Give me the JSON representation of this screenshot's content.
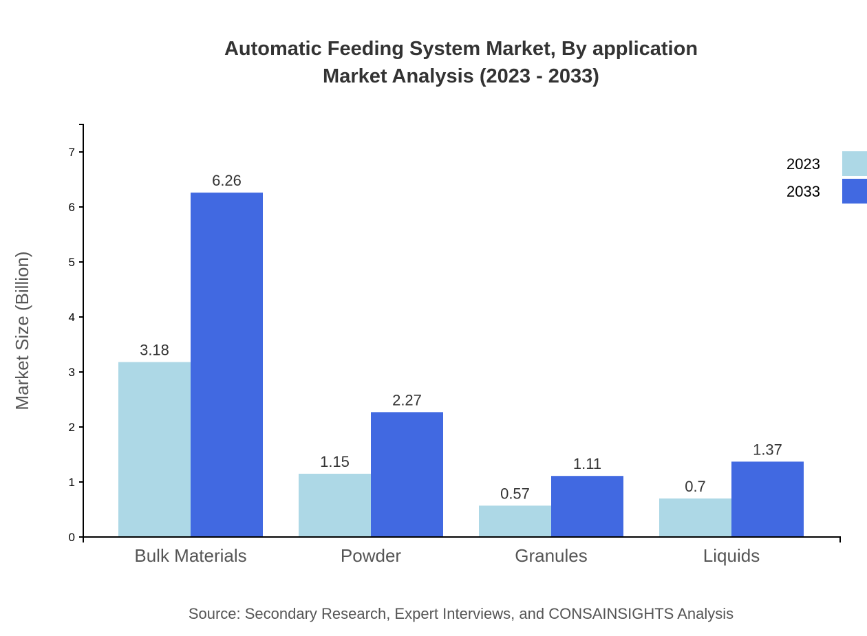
{
  "chart_data": {
    "type": "bar",
    "title": "Automatic Feeding System Market, By application",
    "subtitle": "Market Analysis (2023 - 2033)",
    "xlabel": "",
    "ylabel": "Market Size (Billion)",
    "ylim": [
      0,
      7.5
    ],
    "yticks": [
      0,
      1,
      2,
      3,
      4,
      5,
      6,
      7
    ],
    "categories": [
      "Bulk Materials",
      "Powder",
      "Granules",
      "Liquids"
    ],
    "series": [
      {
        "name": "2023",
        "color": "#ADD8E6",
        "values": [
          3.18,
          1.15,
          0.57,
          0.7
        ]
      },
      {
        "name": "2033",
        "color": "#4169E1",
        "values": [
          6.26,
          2.27,
          1.11,
          1.37
        ]
      }
    ],
    "legend_position": "top-right",
    "grid": false,
    "source": "Source: Secondary Research, Expert Interviews, and CONSAINSIGHTS Analysis"
  }
}
